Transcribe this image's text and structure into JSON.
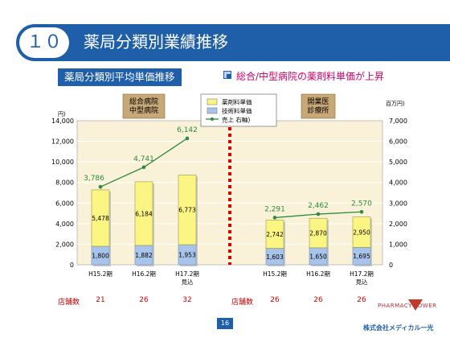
{
  "header": {
    "number": "１０",
    "title": "薬局分類別業績推移"
  },
  "subheader": {
    "label": "薬局分類別平均単価推移",
    "headline": "総合/中型病院の薬剤料単価が上昇"
  },
  "chart_data": {
    "type": "bar",
    "categories": [
      "H15.2期",
      "H16.2期",
      "H17.2期\n見込",
      "H15.2期",
      "H16.2期",
      "H17.2期\n見込"
    ],
    "groups": [
      {
        "name": "総合病院\n中型病院",
        "category_indices": [
          0,
          1,
          2
        ]
      },
      {
        "name": "開業医\n診療所",
        "category_indices": [
          3,
          4,
          5
        ]
      }
    ],
    "series": [
      {
        "name": "技術料単価",
        "type": "bar",
        "axis": "left",
        "color": "#a8c4ea",
        "values": [
          1800,
          1882,
          1953,
          1603,
          1650,
          1695
        ]
      },
      {
        "name": "薬剤料単価",
        "type": "bar",
        "axis": "left",
        "color": "#fbf584",
        "values": [
          5478,
          6184,
          6773,
          2742,
          2870,
          2950
        ]
      },
      {
        "name": "売上 右軸)",
        "type": "line",
        "axis": "right",
        "color": "#2e8b3a",
        "values": [
          3786,
          4741,
          6142,
          2291,
          2462,
          2570
        ]
      }
    ],
    "ylabel_left": "円)",
    "ylabel_right": "百万円)",
    "ylim_left": [
      0,
      14000
    ],
    "ylim_right": [
      0,
      7000
    ],
    "yticks_left": [
      "0",
      "2,000",
      "4,000",
      "6,000",
      "8,000",
      "10,000",
      "12,000",
      "14,000"
    ],
    "yticks_right": [
      "0",
      "1,000",
      "2,000",
      "3,000",
      "4,000",
      "5,000",
      "6,000",
      "7,000"
    ],
    "bar_labels": {
      "技術料単価": [
        "1,800",
        "1,882",
        "1,953",
        "1,603",
        "1,650",
        "1,695"
      ],
      "薬剤料単価": [
        "5,478",
        "6,184",
        "6,773",
        "2,742",
        "2,870",
        "2,950"
      ],
      "売上 右軸)": [
        "3,786",
        "4,741",
        "6,142",
        "2,291",
        "2,462",
        "2,570"
      ]
    },
    "legend": {
      "placement": "top-center",
      "entries": [
        "薬剤料単価",
        "技術料単価",
        "売上 右軸)"
      ]
    },
    "grid": true
  },
  "stores": {
    "label": "店舗数",
    "values": [
      "21",
      "26",
      "32",
      "26",
      "26",
      "26"
    ]
  },
  "footer": {
    "page": "16",
    "logo_top": "PHARMACY LOWER",
    "logo_bottom": "株式会社メディカル一光"
  },
  "colors": {
    "accent": "#1f5fa9",
    "headline": "#cc0066",
    "plot_bg": "#faf2d8",
    "store": "#cc0000",
    "divider": "#cc0000"
  }
}
